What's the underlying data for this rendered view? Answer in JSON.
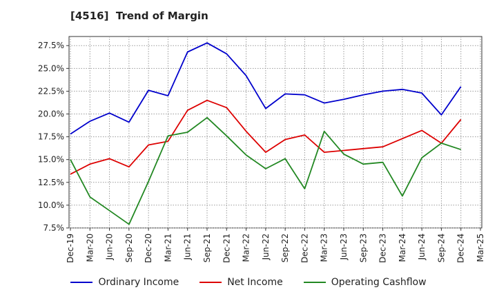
{
  "chart_data": {
    "type": "line",
    "title": "[4516]  Trend of Margin",
    "categories": [
      "Dec-19",
      "Mar-20",
      "Jun-20",
      "Sep-20",
      "Dec-20",
      "Mar-21",
      "Jun-21",
      "Sep-21",
      "Dec-21",
      "Mar-22",
      "Jun-22",
      "Sep-22",
      "Dec-22",
      "Mar-23",
      "Jun-23",
      "Sep-23",
      "Dec-23",
      "Mar-24",
      "Jun-24",
      "Sep-24",
      "Dec-24",
      "Mar-25"
    ],
    "y_ticks": [
      "7.5%",
      "10.0%",
      "12.5%",
      "15.0%",
      "17.5%",
      "20.0%",
      "22.5%",
      "25.0%",
      "27.5%"
    ],
    "ylim": [
      7.5,
      28.5
    ],
    "grid": true,
    "legend_position": "bottom",
    "series": [
      {
        "name": "Ordinary Income",
        "color": "#0000cc",
        "values": [
          17.8,
          19.2,
          20.1,
          19.1,
          22.6,
          22.0,
          26.8,
          27.8,
          26.6,
          24.2,
          20.6,
          22.2,
          22.1,
          21.2,
          21.6,
          22.1,
          22.5,
          22.7,
          22.3,
          19.9,
          23.0,
          null
        ]
      },
      {
        "name": "Net Income",
        "color": "#dd0000",
        "values": [
          13.4,
          14.5,
          15.1,
          14.2,
          16.6,
          17.0,
          20.4,
          21.5,
          20.7,
          18.1,
          15.8,
          17.2,
          17.7,
          15.8,
          16.0,
          16.2,
          16.4,
          17.3,
          18.2,
          16.8,
          19.4,
          null
        ]
      },
      {
        "name": "Operating Cashflow",
        "color": "#228822",
        "values": [
          15.0,
          10.9,
          9.4,
          7.9,
          12.6,
          17.6,
          18.0,
          19.6,
          17.6,
          15.5,
          14.0,
          15.1,
          11.8,
          18.1,
          15.6,
          14.5,
          14.7,
          11.0,
          15.2,
          16.8,
          16.1,
          null
        ]
      }
    ]
  }
}
